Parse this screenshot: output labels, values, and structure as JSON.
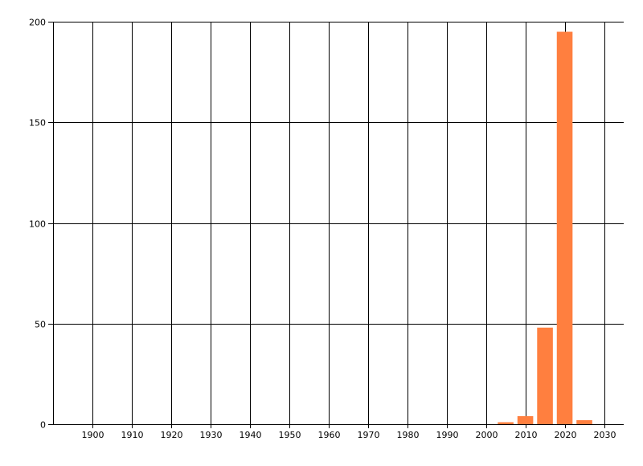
{
  "chart_data": {
    "type": "bar",
    "title": "",
    "xlabel": "",
    "ylabel": "",
    "x": [
      2005,
      2010,
      2015,
      2020,
      2025
    ],
    "values": [
      1,
      4,
      48,
      195,
      2
    ],
    "bar_width_years": 4,
    "xlim": [
      1890,
      2035
    ],
    "ylim": [
      0,
      200
    ],
    "xticks": [
      1900,
      1910,
      1920,
      1930,
      1940,
      1950,
      1960,
      1970,
      1980,
      1990,
      2000,
      2010,
      2020,
      2030
    ],
    "yticks": [
      0,
      50,
      100,
      150,
      200
    ],
    "grid": true,
    "bar_color": "#ff7f3f",
    "grid_color": "#000000"
  }
}
